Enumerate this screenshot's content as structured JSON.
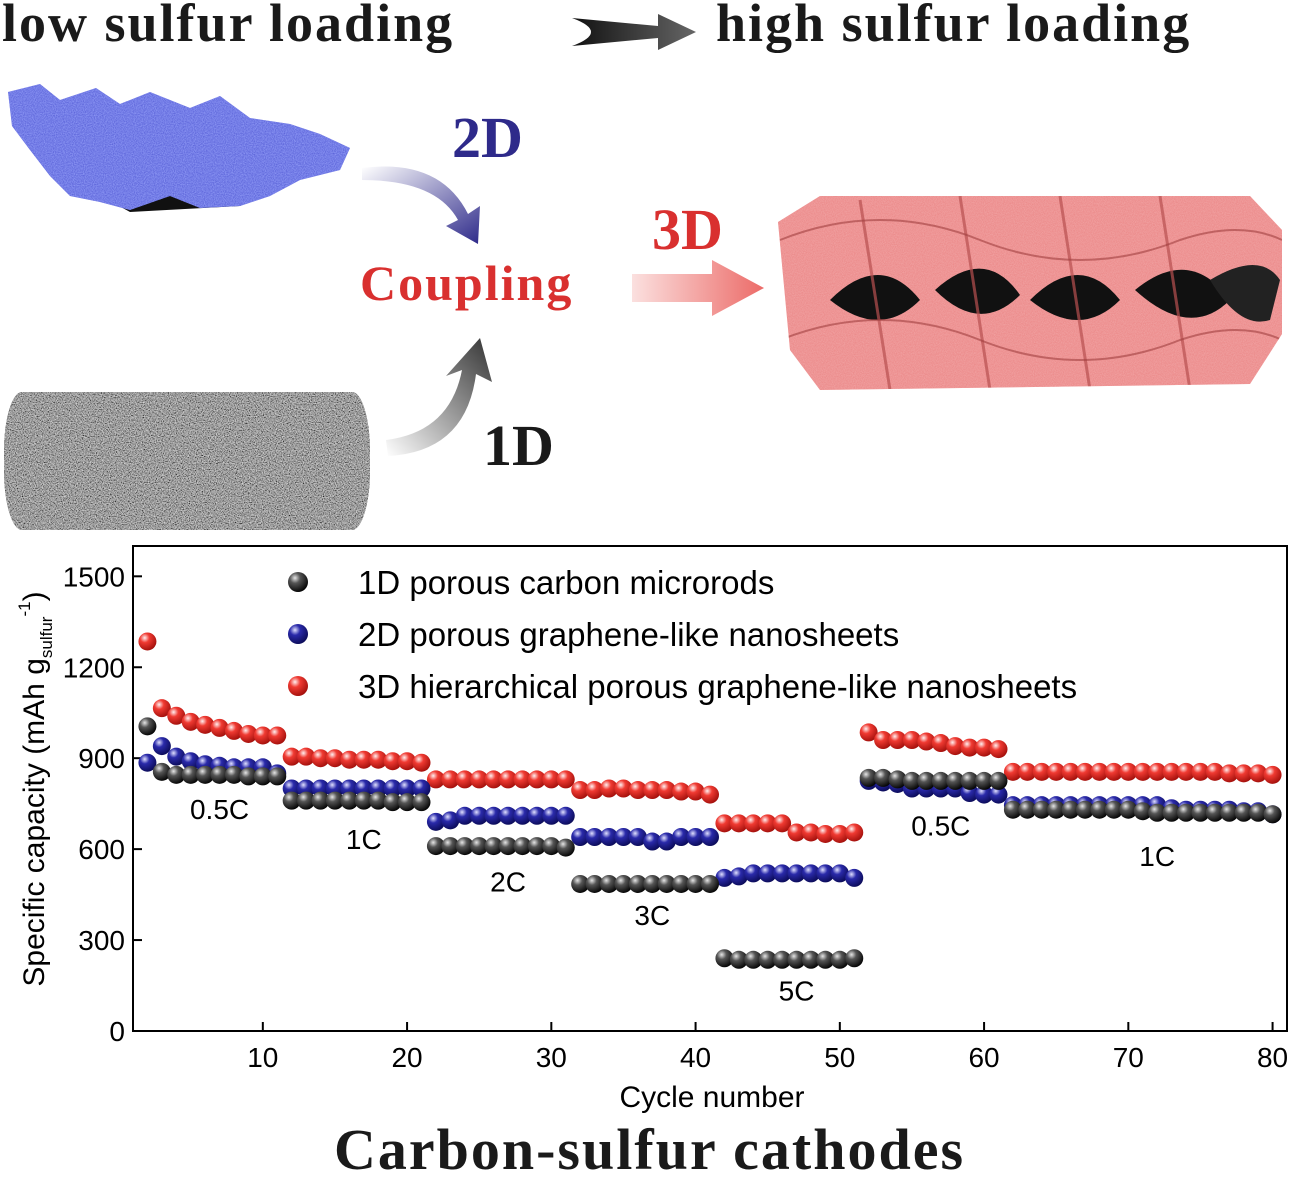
{
  "header": {
    "left_text": "low sulfur loading",
    "right_text": "high sulfur loading"
  },
  "schematic": {
    "label_2d": "2D",
    "label_1d": "1D",
    "label_3d": "3D",
    "coupling": "Coupling",
    "colors": {
      "blue": "#2e2a8a",
      "red": "#d9302f",
      "dark": "#1a1a1a"
    }
  },
  "footer": {
    "title": "Carbon-sulfur cathodes"
  },
  "chart_data": {
    "type": "scatter",
    "xlabel": "Cycle number",
    "ylabel": "Specific capacity (mAh g",
    "ylabel_sub": "sulfur",
    "ylabel_sup": "-1",
    "ylabel_end": ")",
    "xlim": [
      1,
      81
    ],
    "ylim": [
      0,
      1600
    ],
    "xticks": [
      10,
      20,
      30,
      40,
      50,
      60,
      70,
      80
    ],
    "yticks": [
      0,
      300,
      600,
      900,
      1200,
      1500
    ],
    "legend_position": "top",
    "rate_labels": [
      {
        "text": "0.5C",
        "x": 7,
        "y": 700
      },
      {
        "text": "1C",
        "x": 17,
        "y": 600
      },
      {
        "text": "2C",
        "x": 27,
        "y": 460
      },
      {
        "text": "3C",
        "x": 37,
        "y": 350
      },
      {
        "text": "5C",
        "x": 47,
        "y": 100
      },
      {
        "text": "0.5C",
        "x": 57,
        "y": 645
      },
      {
        "text": "1C",
        "x": 72,
        "y": 545
      }
    ],
    "series": [
      {
        "name": "3D hierarchical porous graphene-like nanosheets",
        "color": "#e8322c",
        "x": [
          2,
          3,
          4,
          5,
          6,
          7,
          8,
          9,
          10,
          11,
          12,
          13,
          14,
          15,
          16,
          17,
          18,
          19,
          20,
          21,
          22,
          23,
          24,
          25,
          26,
          27,
          28,
          29,
          30,
          31,
          32,
          33,
          34,
          35,
          36,
          37,
          38,
          39,
          40,
          41,
          42,
          43,
          44,
          45,
          46,
          47,
          48,
          49,
          50,
          51,
          52,
          53,
          54,
          55,
          56,
          57,
          58,
          59,
          60,
          61,
          62,
          63,
          64,
          65,
          66,
          67,
          68,
          69,
          70,
          71,
          72,
          73,
          74,
          75,
          76,
          77,
          78,
          79,
          80
        ],
        "values": [
          1285,
          1065,
          1040,
          1020,
          1010,
          1000,
          990,
          980,
          975,
          975,
          905,
          905,
          900,
          900,
          895,
          895,
          895,
          890,
          890,
          885,
          830,
          830,
          830,
          830,
          830,
          830,
          830,
          830,
          830,
          830,
          795,
          795,
          800,
          800,
          795,
          795,
          795,
          790,
          790,
          780,
          685,
          685,
          685,
          685,
          685,
          655,
          655,
          650,
          650,
          655,
          985,
          960,
          960,
          960,
          955,
          950,
          940,
          935,
          935,
          930,
          855,
          855,
          855,
          855,
          855,
          855,
          855,
          855,
          855,
          855,
          855,
          855,
          855,
          855,
          855,
          850,
          850,
          850,
          845
        ]
      },
      {
        "name": "2D porous graphene-like nanosheets",
        "color": "#1f1f8c",
        "x": [
          2,
          3,
          4,
          5,
          6,
          7,
          8,
          9,
          10,
          11,
          12,
          13,
          14,
          15,
          16,
          17,
          18,
          19,
          20,
          21,
          22,
          23,
          24,
          25,
          26,
          27,
          28,
          29,
          30,
          31,
          32,
          33,
          34,
          35,
          36,
          37,
          38,
          39,
          40,
          41,
          42,
          43,
          44,
          45,
          46,
          47,
          48,
          49,
          50,
          51,
          52,
          53,
          54,
          55,
          56,
          57,
          58,
          59,
          60,
          61,
          62,
          63,
          64,
          65,
          66,
          67,
          68,
          69,
          70,
          71,
          72,
          73,
          74,
          75,
          76,
          77,
          78,
          79,
          80
        ],
        "values": [
          885,
          940,
          905,
          890,
          880,
          875,
          870,
          870,
          870,
          850,
          800,
          800,
          800,
          800,
          800,
          800,
          800,
          800,
          800,
          800,
          690,
          695,
          710,
          710,
          710,
          710,
          710,
          710,
          710,
          710,
          640,
          640,
          640,
          640,
          640,
          625,
          625,
          640,
          640,
          640,
          505,
          510,
          520,
          520,
          520,
          520,
          520,
          520,
          520,
          505,
          825,
          820,
          815,
          800,
          800,
          800,
          800,
          785,
          780,
          780,
          745,
          745,
          745,
          745,
          745,
          745,
          745,
          745,
          745,
          745,
          745,
          735,
          730,
          730,
          730,
          730,
          725,
          725,
          715
        ]
      },
      {
        "name": "1D porous carbon microrods",
        "color": "#1a1a1a",
        "x": [
          2,
          3,
          4,
          5,
          6,
          7,
          8,
          9,
          10,
          11,
          12,
          13,
          14,
          15,
          16,
          17,
          18,
          19,
          20,
          21,
          22,
          23,
          24,
          25,
          26,
          27,
          28,
          29,
          30,
          31,
          32,
          33,
          34,
          35,
          36,
          37,
          38,
          39,
          40,
          41,
          42,
          43,
          44,
          45,
          46,
          47,
          48,
          49,
          50,
          51,
          52,
          53,
          54,
          55,
          56,
          57,
          58,
          59,
          60,
          61,
          62,
          63,
          64,
          65,
          66,
          67,
          68,
          69,
          70,
          71,
          72,
          73,
          74,
          75,
          76,
          77,
          78,
          79,
          80
        ],
        "values": [
          1005,
          855,
          845,
          845,
          845,
          845,
          845,
          840,
          840,
          840,
          760,
          760,
          760,
          760,
          760,
          760,
          760,
          755,
          755,
          755,
          610,
          610,
          610,
          610,
          610,
          610,
          610,
          610,
          610,
          605,
          485,
          485,
          485,
          485,
          485,
          485,
          485,
          485,
          485,
          485,
          240,
          235,
          235,
          235,
          235,
          235,
          235,
          235,
          235,
          240,
          835,
          835,
          830,
          825,
          825,
          825,
          825,
          825,
          825,
          825,
          730,
          730,
          730,
          730,
          730,
          730,
          730,
          730,
          730,
          725,
          720,
          720,
          720,
          720,
          720,
          720,
          720,
          720,
          715
        ]
      }
    ]
  }
}
